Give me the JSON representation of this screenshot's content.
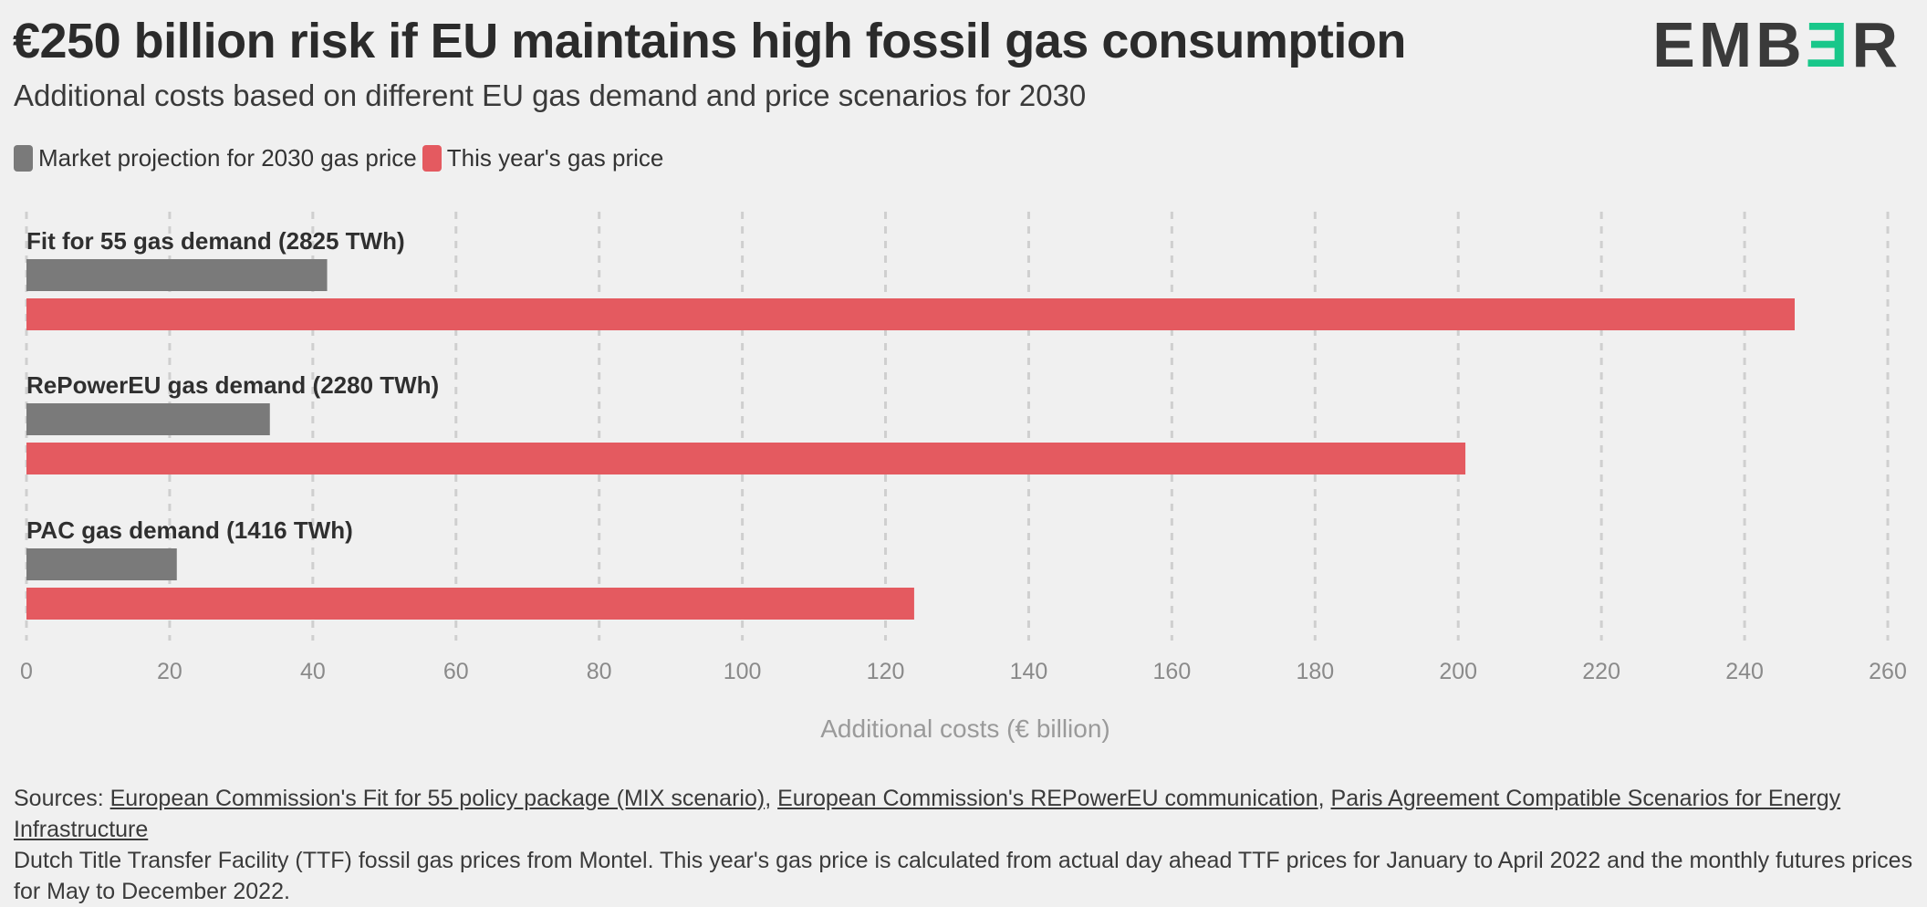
{
  "header": {
    "title": "€250 billion risk if EU maintains high fossil gas consumption",
    "subtitle": "Additional costs based on different EU gas demand and price scenarios for 2030",
    "logo_text": "EMBER"
  },
  "legend": [
    {
      "label": "Market projection for 2030 gas price",
      "color": "#7a7a7a"
    },
    {
      "label": "This year's gas price",
      "color": "#e45a60"
    }
  ],
  "chart_data": {
    "type": "bar",
    "orientation": "horizontal",
    "categories": [
      "Fit for 55 gas demand (2825 TWh)",
      "RePowerEU gas demand (2280 TWh)",
      "PAC gas demand (1416 TWh)"
    ],
    "series": [
      {
        "name": "Market projection for 2030 gas price",
        "color": "#7a7a7a",
        "values": [
          42,
          34,
          21
        ]
      },
      {
        "name": "This year's gas price",
        "color": "#e45a60",
        "values": [
          247,
          201,
          124
        ]
      }
    ],
    "xlabel": "Additional costs (€ billion)",
    "xlim": [
      0,
      260
    ],
    "xticks": [
      0,
      20,
      40,
      60,
      80,
      100,
      120,
      140,
      160,
      180,
      200,
      220,
      240,
      260
    ],
    "grid": "vertical dashed",
    "legend_position": "top-left"
  },
  "sources": {
    "prefix": "Sources: ",
    "links": [
      "European Commission's Fit for 55 policy package (MIX scenario)",
      "European Commission's REPowerEU communication",
      "Paris Agreement Compatible Scenarios for Energy Infrastructure"
    ],
    "separator": ", ",
    "note": "Dutch Title Transfer Facility (TTF) fossil gas prices from Montel. This year's gas price is calculated from actual day ahead TTF prices for January to April 2022 and the monthly futures prices for May to December 2022."
  }
}
